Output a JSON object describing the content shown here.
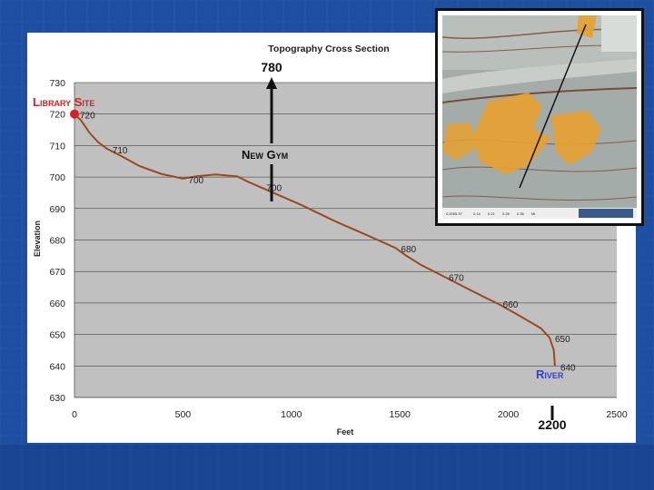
{
  "slide": {
    "background": "#1f4fa0",
    "background_dark": "#183f88",
    "grid_lines": "#3f6fc4"
  },
  "chart_data": {
    "type": "line",
    "title": "Topography Cross Section",
    "xlabel": "Feet",
    "ylabel": "Elevation",
    "xlim": [
      0,
      2500
    ],
    "ylim": [
      630,
      730
    ],
    "x_ticks": [
      "0",
      "500",
      "1000",
      "1500",
      "2000",
      "2500"
    ],
    "y_ticks": [
      "630",
      "640",
      "650",
      "660",
      "670",
      "680",
      "690",
      "700",
      "710",
      "720",
      "730"
    ],
    "grid": true,
    "plot_background": "#c0c0c0",
    "line_color": "#9a4a1e",
    "series": [
      {
        "x": [
          0,
          30,
          70,
          110,
          150,
          220,
          300,
          400,
          500,
          560,
          650,
          750,
          800,
          900,
          1050,
          1200,
          1350,
          1480,
          1530,
          1600,
          1700,
          1800,
          1900,
          1960,
          2050,
          2150,
          2190,
          2210,
          2215
        ],
        "y": [
          720,
          718,
          714,
          711,
          709,
          706.5,
          703.5,
          701,
          699.5,
          700.2,
          700.8,
          700.2,
          698.5,
          695.5,
          691,
          686,
          681.5,
          677.5,
          675,
          672,
          668.5,
          665,
          661.5,
          659.5,
          656,
          652,
          649,
          645,
          640
        ]
      }
    ],
    "point_labels": [
      {
        "x": 0,
        "y": 720,
        "text": "720"
      },
      {
        "x": 150,
        "y": 709,
        "text": "710"
      },
      {
        "x": 500,
        "y": 699.5,
        "text": "700"
      },
      {
        "x": 860,
        "y": 697,
        "text": "700"
      },
      {
        "x": 1480,
        "y": 677.5,
        "text": "680"
      },
      {
        "x": 1700,
        "y": 668.5,
        "text": "670"
      },
      {
        "x": 1950,
        "y": 660,
        "text": "660"
      },
      {
        "x": 2190,
        "y": 649,
        "text": "650"
      },
      {
        "x": 2215,
        "y": 640,
        "text": "640"
      }
    ],
    "annotations": {
      "library_site": {
        "x": 0,
        "y": 720,
        "text": "Library Site",
        "color": "#d42020"
      },
      "new_gym": {
        "x": 900,
        "text": "New Gym",
        "up_label": "780"
      },
      "river": {
        "x": 2215,
        "text": "River",
        "down_label": "2200",
        "color": "#2f3fd0"
      }
    }
  },
  "map": {
    "scale_labels": [
      "0.0050.37",
      "0.14",
      "0.21",
      "0.28",
      "0.35"
    ],
    "scale_unit": "Mi",
    "accent": "#e8a030"
  }
}
